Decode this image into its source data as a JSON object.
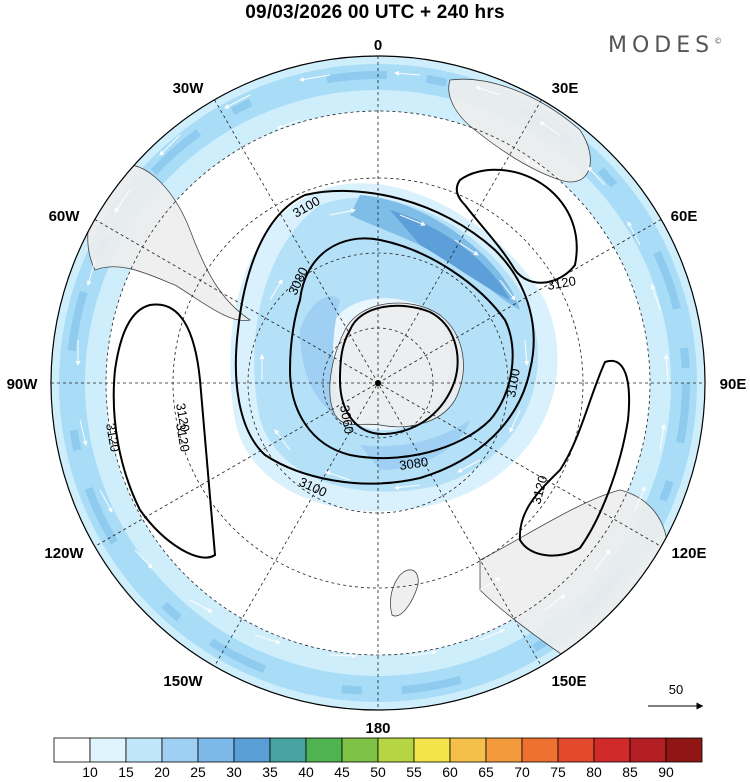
{
  "title": "09/03/2026  00 UTC  + 240 hrs",
  "brand": "MODES",
  "brand_mark": "©",
  "longitude_labels": {
    "n0": "0",
    "e30": "30E",
    "e60": "60E",
    "e90": "90E",
    "e120": "120E",
    "e150": "150E",
    "s180": "180",
    "w150": "150W",
    "w120": "120W",
    "w90": "90W",
    "w60": "60W",
    "w30": "30W"
  },
  "contour_labels": {
    "c3100_top": "3100",
    "c3080_top": "3080",
    "c3060": "3060",
    "c3080_bot": "3080",
    "c3100_bot": "3100",
    "c3100_right": "3100",
    "c3120_ne": "3120",
    "c3120_se": "3120",
    "c3120_w1": "3120",
    "c3120_w2": "3120",
    "c3120_w3": "3120"
  },
  "vector_reference": {
    "value": "50"
  },
  "colorbar": {
    "ticks": [
      "10",
      "15",
      "20",
      "25",
      "30",
      "35",
      "40",
      "45",
      "50",
      "55",
      "60",
      "65",
      "70",
      "75",
      "80",
      "85",
      "90"
    ],
    "colors": [
      "#ffffff",
      "#dff4fd",
      "#bfe6fa",
      "#9fd0f3",
      "#7cb8e8",
      "#5a9ed6",
      "#47a3a0",
      "#4fb44f",
      "#7dc246",
      "#b6d542",
      "#f2e44a",
      "#f5c04a",
      "#f39a3c",
      "#ee7131",
      "#e5492d",
      "#d02a2a",
      "#b21e24",
      "#901616"
    ]
  }
}
